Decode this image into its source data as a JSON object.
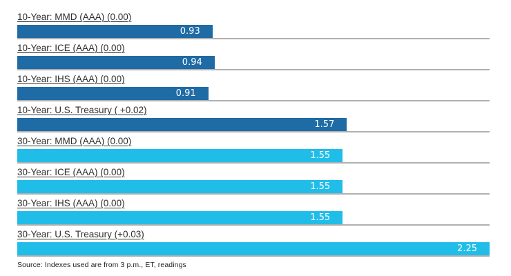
{
  "chart_data": {
    "type": "bar",
    "orientation": "horizontal",
    "title": "",
    "xlabel": "",
    "ylabel": "",
    "xlim": [
      0,
      2.25
    ],
    "grid": false,
    "legend": false,
    "colors": {
      "ten_year": "#1f6ba6",
      "thirty_year": "#21bde9"
    },
    "track_color": "#b0b0b0",
    "bars": [
      {
        "label": "10-Year: MMD (AAA) (0.00)",
        "value": 0.93,
        "display": "0.93",
        "series": "ten_year"
      },
      {
        "label": "10-Year: ICE (AAA) (0.00)",
        "value": 0.94,
        "display": "0.94",
        "series": "ten_year"
      },
      {
        "label": "10-Year: IHS (AAA) (0.00)",
        "value": 0.91,
        "display": "0.91",
        "series": "ten_year"
      },
      {
        "label": "10-Year: U.S. Treasury ( +0.02)",
        "value": 1.57,
        "display": "1.57",
        "series": "ten_year"
      },
      {
        "label": "30-Year: MMD (AAA) (0.00)",
        "value": 1.55,
        "display": "1.55",
        "series": "thirty_year"
      },
      {
        "label": "30-Year: ICE (AAA) (0.00)",
        "value": 1.55,
        "display": "1.55",
        "series": "thirty_year"
      },
      {
        "label": "30-Year: IHS (AAA) (0.00)",
        "value": 1.55,
        "display": "1.55",
        "series": "thirty_year"
      },
      {
        "label": "30-Year: U.S. Treasury (+0.03)",
        "value": 2.25,
        "display": "2.25",
        "series": "thirty_year"
      }
    ],
    "source_note": "Source: Indexes used are from 3 p.m., ET, readings"
  }
}
